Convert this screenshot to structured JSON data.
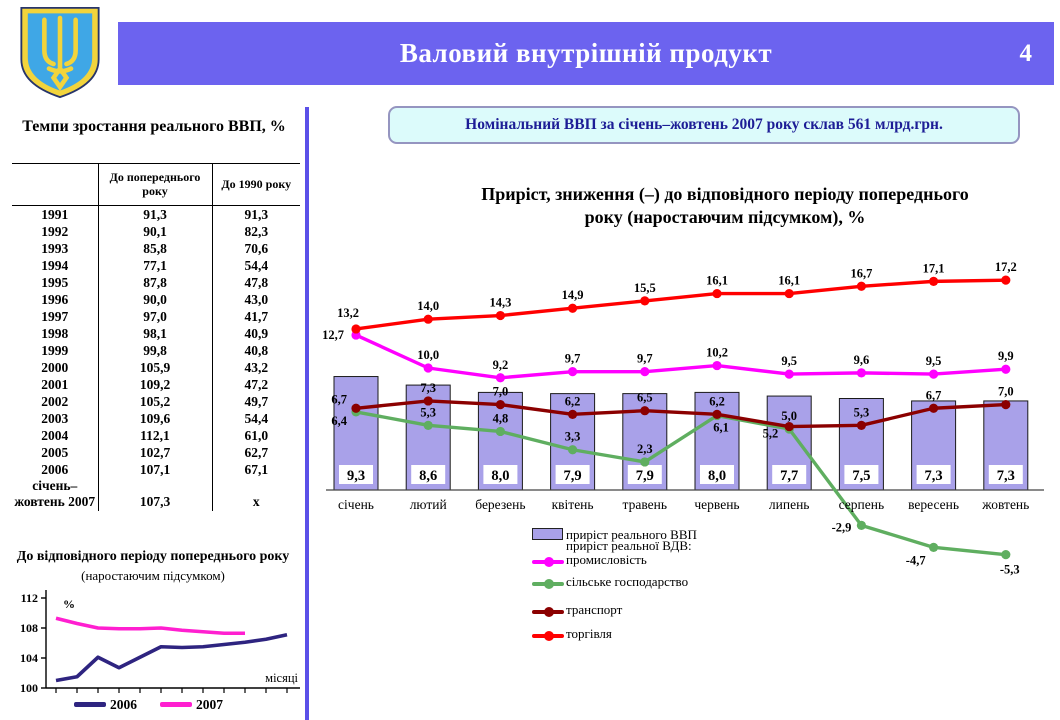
{
  "header": {
    "title": "Валовий внутрішній продукт",
    "page_number": "4"
  },
  "emblem": {
    "icon": "ukraine-trident-coat-of-arms",
    "shield_color": "#3FA7E6",
    "trident_color": "#F2D43C"
  },
  "left_panel": {
    "table": {
      "title": "Темпи зростання реального ВВП, %",
      "col_headers": [
        "",
        "До попереднього року",
        "До 1990 року"
      ],
      "rows": [
        [
          "1991",
          "91,3",
          "91,3"
        ],
        [
          "1992",
          "90,1",
          "82,3"
        ],
        [
          "1993",
          "85,8",
          "70,6"
        ],
        [
          "1994",
          "77,1",
          "54,4"
        ],
        [
          "1995",
          "87,8",
          "47,8"
        ],
        [
          "1996",
          "90,0",
          "43,0"
        ],
        [
          "1997",
          "97,0",
          "41,7"
        ],
        [
          "1998",
          "98,1",
          "40,9"
        ],
        [
          "1999",
          "99,8",
          "40,8"
        ],
        [
          "2000",
          "105,9",
          "43,2"
        ],
        [
          "2001",
          "109,2",
          "47,2"
        ],
        [
          "2002",
          "105,2",
          "49,7"
        ],
        [
          "2003",
          "109,6",
          "54,4"
        ],
        [
          "2004",
          "112,1",
          "61,0"
        ],
        [
          "2005",
          "102,7",
          "62,7"
        ],
        [
          "2006",
          "107,1",
          "67,1"
        ],
        [
          "січень–жовтень 2007",
          "107,3",
          "х"
        ]
      ]
    }
  },
  "callout": {
    "text": "Номінальний ВВП за січень–жовтень 2007 року склав 561 млрд.грн."
  },
  "chart_data": [
    {
      "type": "bar",
      "combo": "bar+line",
      "title": "Приріст, зниження (–) до відповідного періоду попереднього року (наростаючим підсумком), %",
      "categories": [
        "січень",
        "лютий",
        "березень",
        "квітень",
        "травень",
        "червень",
        "липень",
        "серпень",
        "вересень",
        "жовтень"
      ],
      "bar_series": {
        "name": "приріст реального ВВП",
        "color": "#A9A1E9",
        "values": [
          9.3,
          8.6,
          8.0,
          7.9,
          7.9,
          8.0,
          7.7,
          7.5,
          7.3,
          7.3
        ]
      },
      "line_group_label": "приріст реальної ВДВ:",
      "series": [
        {
          "name": "промисловість",
          "color": "#FF00FF",
          "values": [
            12.7,
            10.0,
            9.2,
            9.7,
            9.7,
            10.2,
            9.5,
            9.6,
            9.5,
            9.9
          ]
        },
        {
          "name": "сільське господарство",
          "color": "#5FAE60",
          "values": [
            6.4,
            5.3,
            4.8,
            3.3,
            2.3,
            6.1,
            5.0,
            -2.9,
            -4.7,
            -5.3
          ]
        },
        {
          "name": "транспорт",
          "color": "#8B0000",
          "values": [
            6.7,
            7.3,
            7.0,
            6.2,
            6.5,
            6.2,
            5.2,
            5.3,
            6.7,
            7.0
          ]
        },
        {
          "name": "торгівля",
          "color": "#FF0000",
          "values": [
            13.2,
            14.0,
            14.3,
            14.9,
            15.5,
            16.1,
            16.1,
            16.7,
            17.1,
            17.2
          ]
        }
      ],
      "legend_position": "bottom-left",
      "grid": false
    },
    {
      "type": "line",
      "title": "До відповідного періоду попереднього року",
      "subtitle": "(наростаючим підсумком)",
      "ylabel": "%",
      "xlabel": "місяці",
      "ylim": [
        100,
        112
      ],
      "yticks": [
        100,
        104,
        108,
        112
      ],
      "series": [
        {
          "name": "2006",
          "color": "#2E2480",
          "values": [
            101.0,
            101.5,
            104.1,
            102.7,
            104.1,
            105.5,
            105.4,
            105.5,
            105.8,
            106.1,
            106.5,
            107.1
          ]
        },
        {
          "name": "2007",
          "color": "#FF1FD0",
          "values": [
            109.3,
            108.6,
            108.0,
            107.9,
            107.9,
            108.0,
            107.7,
            107.5,
            107.3,
            107.3
          ]
        }
      ],
      "legend_position": "bottom",
      "grid": false
    }
  ]
}
